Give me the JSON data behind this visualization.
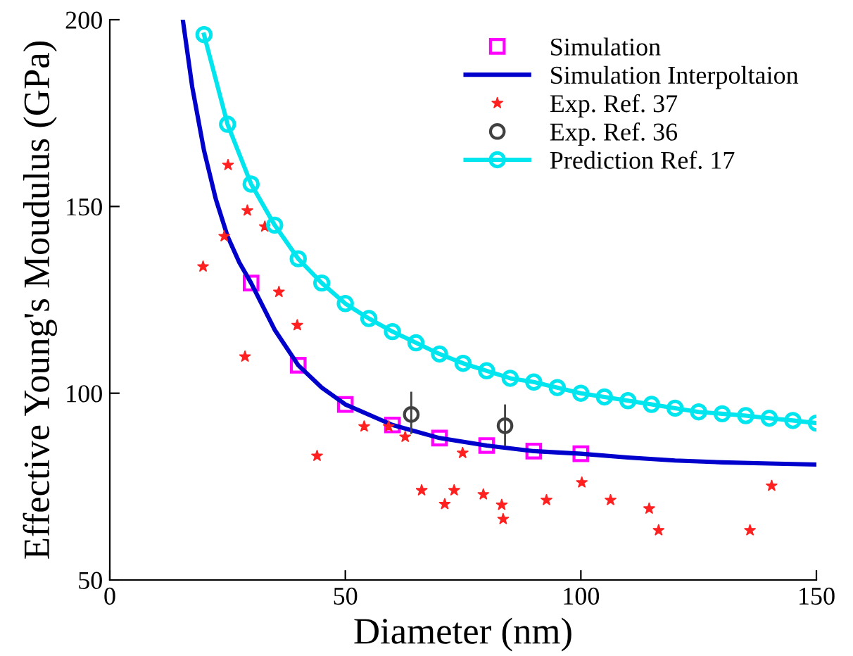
{
  "chart_data": {
    "type": "line",
    "xlabel": "Diameter (nm)",
    "ylabel": "Effective Young's Moudulus (GPa)",
    "xlim": [
      0,
      150
    ],
    "ylim": [
      50,
      200
    ],
    "xticks": [
      0,
      50,
      100,
      150
    ],
    "yticks": [
      50,
      100,
      150,
      200
    ],
    "grid": false,
    "legend": "top right",
    "series": [
      {
        "name": "Simulation",
        "type": "scatter",
        "marker": "square",
        "color": "#ff00ff",
        "x": [
          30,
          40,
          50,
          60,
          70,
          80,
          90,
          100
        ],
        "values": [
          129.5,
          107.5,
          97,
          91.5,
          88,
          86,
          84.5,
          83.8
        ]
      },
      {
        "name": "Simulation Interpoltaion",
        "marker": "none",
        "line_style": "solid",
        "color": "#0000cc",
        "x": [
          15.5,
          17.5,
          20,
          22.5,
          25,
          27.5,
          30,
          35,
          40,
          45,
          50,
          60,
          70,
          80,
          90,
          100,
          110,
          120,
          130,
          140,
          150
        ],
        "values": [
          200,
          182,
          165,
          152,
          142,
          135,
          129.5,
          117,
          107.5,
          101.5,
          97,
          91.5,
          88,
          86,
          84.5,
          83.8,
          82.8,
          82,
          81.5,
          81.2,
          80.9
        ]
      },
      {
        "name": "Exp. Ref. 37",
        "type": "scatter",
        "marker": "star",
        "color": "#ff2020",
        "x": [
          19.8,
          25.1,
          24.3,
          29.2,
          32.9,
          28.7,
          35.9,
          39.8,
          44.0,
          54.0,
          59.2,
          62.7,
          74.9,
          66.2,
          73.1,
          71.1,
          79.3,
          83.2,
          83.5,
          92.7,
          100.2,
          106.3,
          114.5,
          116.5,
          135.9,
          140.5
        ],
        "values": [
          133.9,
          161.1,
          142,
          148.9,
          144.6,
          109.8,
          127.1,
          118.2,
          83.2,
          91.1,
          91.1,
          88.3,
          84.0,
          74.0,
          74.0,
          70.3,
          72.9,
          70.1,
          66.3,
          71.4,
          76.1,
          71.4,
          69.1,
          63.3,
          63.3,
          75.2
        ]
      },
      {
        "name": "Exp. Ref. 36",
        "type": "scatter",
        "marker": "circle",
        "color": "#404040",
        "x": [
          64.0,
          83.9
        ],
        "values": [
          94.3,
          91.3
        ],
        "errors": [
          [
            89.1,
            100.4
          ],
          [
            85.9,
            97.0
          ]
        ]
      },
      {
        "name": "Prediction Ref. 17",
        "marker": "circle",
        "line_style": "solid",
        "color": "#00e5ee",
        "x": [
          20,
          25,
          30,
          35,
          40,
          45,
          50,
          55,
          60,
          65,
          70,
          75,
          80,
          85,
          90,
          95,
          100,
          105,
          110,
          115,
          120,
          125,
          130,
          135,
          140,
          145,
          150
        ],
        "values": [
          196,
          172,
          156,
          145,
          136,
          129.5,
          124,
          120,
          116.5,
          113.5,
          110.5,
          108,
          106,
          104,
          103,
          101.5,
          100,
          99,
          98,
          97,
          96,
          95,
          94.5,
          94,
          93.3,
          92.7,
          92
        ]
      }
    ]
  }
}
